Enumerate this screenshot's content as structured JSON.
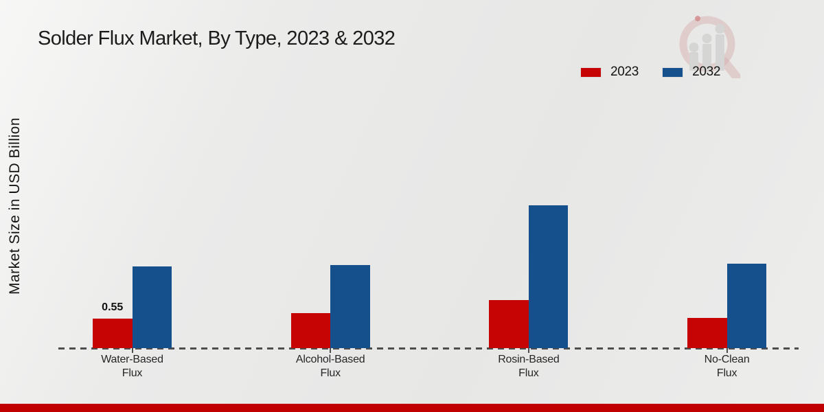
{
  "header": {
    "title": "Solder Flux Market, By Type, 2023 & 2032"
  },
  "chart_data": {
    "type": "bar",
    "title": "Solder Flux Market, By Type, 2023 & 2032",
    "xlabel": "",
    "ylabel": "Market Size in USD Billion",
    "categories": [
      "Water-Based\nFlux",
      "Alcohol-Based\nFlux",
      "Rosin-Based\nFlux",
      "No-Clean\nFlux"
    ],
    "series": [
      {
        "name": "2023",
        "color": "#c70404",
        "values": [
          0.55,
          0.66,
          0.9,
          0.57
        ]
      },
      {
        "name": "2032",
        "color": "#16508c",
        "values": [
          1.54,
          1.56,
          2.69,
          1.59
        ]
      }
    ],
    "annotations": [
      {
        "series_index": 0,
        "category_index": 0,
        "text": "0.55"
      }
    ],
    "ylim": [
      0,
      3
    ],
    "grid": false,
    "legend_position": "top-right",
    "baseline_style": "dashed"
  },
  "watermark": {
    "icon": "magnifier-bar-chart-logo"
  },
  "footer": {
    "accent_color": "#c00000"
  }
}
